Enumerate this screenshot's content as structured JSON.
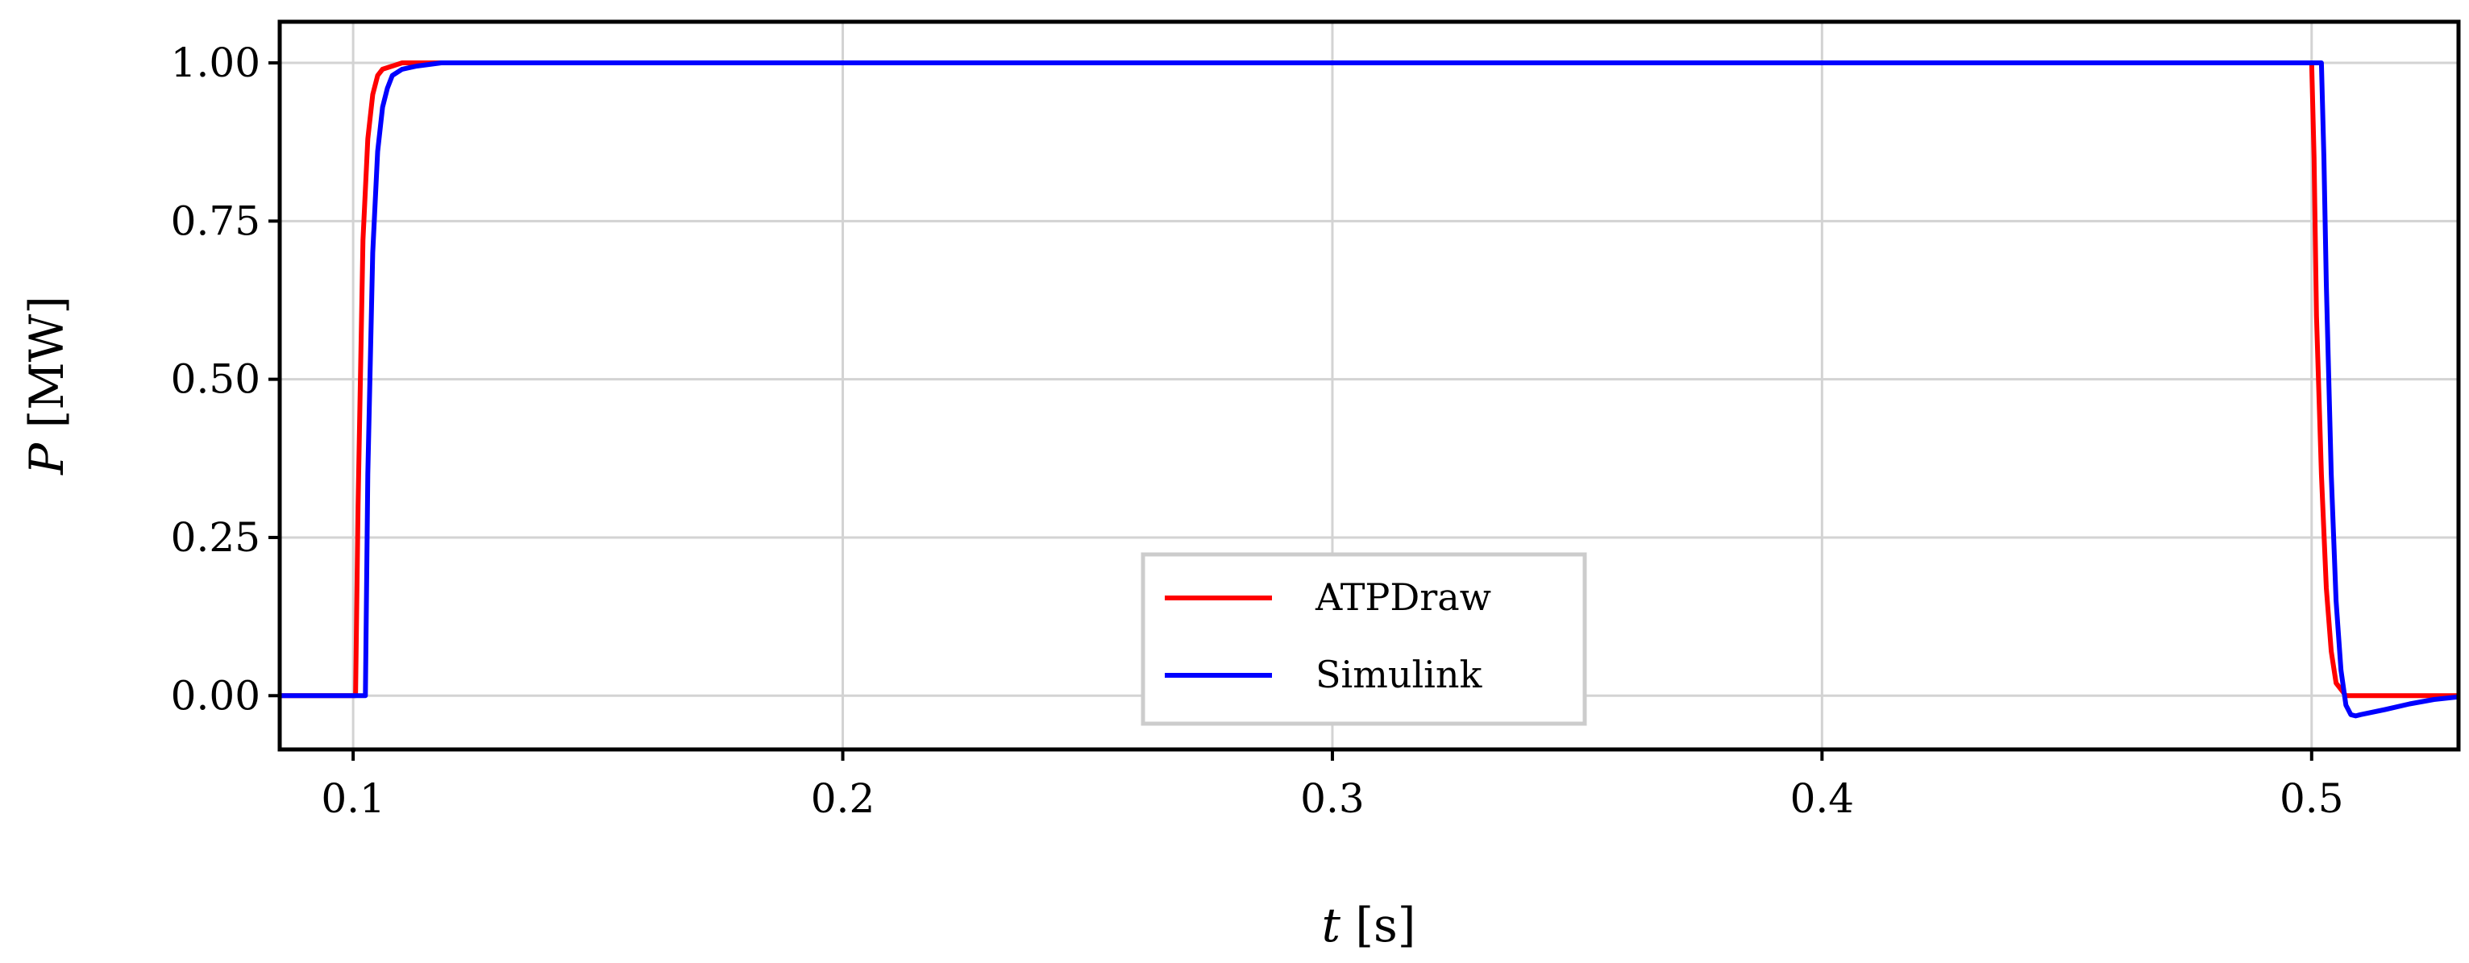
{
  "chart_data": {
    "type": "line",
    "title": "",
    "xlabel": {
      "symbol": "t",
      "unit": " [s]"
    },
    "ylabel": {
      "symbol": "P",
      "unit": " [MW]"
    },
    "xlim": [
      0.085,
      0.53
    ],
    "ylim": [
      -0.085,
      1.065
    ],
    "x_ticks": [
      {
        "value": 0.1,
        "label": "0.1"
      },
      {
        "value": 0.2,
        "label": "0.2"
      },
      {
        "value": 0.3,
        "label": "0.3"
      },
      {
        "value": 0.4,
        "label": "0.4"
      },
      {
        "value": 0.5,
        "label": "0.5"
      }
    ],
    "y_ticks": [
      {
        "value": 0.0,
        "label": "0.00"
      },
      {
        "value": 0.25,
        "label": "0.25"
      },
      {
        "value": 0.5,
        "label": "0.50"
      },
      {
        "value": 0.75,
        "label": "0.75"
      },
      {
        "value": 1.0,
        "label": "1.00"
      }
    ],
    "grid": true,
    "legend": {
      "position": "lower-center"
    },
    "series": [
      {
        "name": "ATPDraw",
        "color": "#ff0000",
        "x": [
          0.085,
          0.1005,
          0.101,
          0.102,
          0.103,
          0.104,
          0.105,
          0.106,
          0.108,
          0.11,
          0.115,
          0.5,
          0.5005,
          0.501,
          0.502,
          0.503,
          0.504,
          0.505,
          0.507,
          0.51,
          0.53
        ],
        "y": [
          0.0,
          0.0,
          0.3,
          0.72,
          0.88,
          0.95,
          0.98,
          0.99,
          0.995,
          1.0,
          1.0,
          1.0,
          0.85,
          0.6,
          0.35,
          0.17,
          0.07,
          0.02,
          0.0,
          0.0,
          0.0
        ]
      },
      {
        "name": "Simulink",
        "color": "#0000ff",
        "x": [
          0.085,
          0.1025,
          0.103,
          0.104,
          0.105,
          0.106,
          0.107,
          0.108,
          0.11,
          0.113,
          0.118,
          0.502,
          0.5025,
          0.503,
          0.504,
          0.505,
          0.506,
          0.507,
          0.508,
          0.509,
          0.51,
          0.515,
          0.52,
          0.525,
          0.53
        ],
        "y": [
          0.0,
          0.0,
          0.35,
          0.7,
          0.86,
          0.93,
          0.96,
          0.98,
          0.99,
          0.995,
          1.0,
          1.0,
          0.85,
          0.65,
          0.35,
          0.15,
          0.04,
          -0.015,
          -0.03,
          -0.032,
          -0.03,
          -0.022,
          -0.013,
          -0.006,
          -0.002
        ]
      }
    ]
  }
}
